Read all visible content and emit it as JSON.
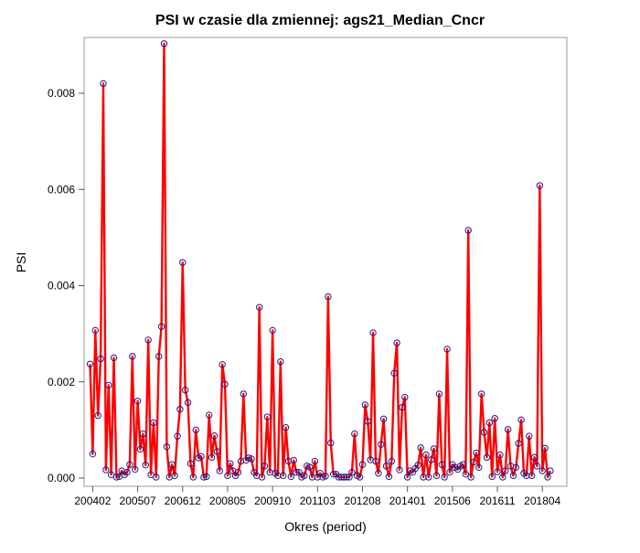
{
  "chart_data": {
    "type": "line",
    "title": "PSI w czasie dla zmiennej: ags21_Median_Cncr",
    "xlabel": "Okres (period)",
    "ylabel": "PSI",
    "y_ticks": [
      "0.000",
      "0.002",
      "0.004",
      "0.006",
      "0.008"
    ],
    "ylim": [
      0,
      0.0095
    ],
    "x_ticks": [
      "200402",
      "200507",
      "200612",
      "200805",
      "200910",
      "201103",
      "201208",
      "201401",
      "201506",
      "201611",
      "201804"
    ],
    "x": [
      "200401",
      "200402",
      "200403",
      "200404",
      "200405",
      "200406",
      "200407",
      "200408",
      "200409",
      "200410",
      "200411",
      "200412",
      "200501",
      "200502",
      "200503",
      "200504",
      "200505",
      "200506",
      "200507",
      "200508",
      "200509",
      "200510",
      "200511",
      "200512",
      "200601",
      "200602",
      "200603",
      "200604",
      "200605",
      "200606",
      "200607",
      "200608",
      "200609",
      "200610",
      "200611",
      "200612",
      "200701",
      "200702",
      "200703",
      "200704",
      "200705",
      "200706",
      "200707",
      "200708",
      "200709",
      "200710",
      "200711",
      "200712",
      "200801",
      "200802",
      "200803",
      "200804",
      "200805",
      "200806",
      "200807",
      "200808",
      "200809",
      "200810",
      "200811",
      "200812",
      "200901",
      "200902",
      "200903",
      "200904",
      "200905",
      "200906",
      "200907",
      "200908",
      "200909",
      "200910",
      "200911",
      "200912",
      "201001",
      "201002",
      "201003",
      "201004",
      "201005",
      "201006",
      "201007",
      "201008",
      "201009",
      "201010",
      "201011",
      "201012",
      "201101",
      "201102",
      "201103",
      "201104",
      "201105",
      "201106",
      "201107",
      "201108",
      "201109",
      "201110",
      "201111",
      "201112",
      "201201",
      "201202",
      "201203",
      "201204",
      "201205",
      "201206",
      "201207",
      "201208",
      "201209",
      "201210",
      "201211",
      "201212",
      "201301",
      "201302",
      "201303",
      "201304",
      "201305",
      "201306",
      "201307",
      "201308",
      "201309",
      "201310",
      "201311",
      "201312",
      "201401",
      "201402",
      "201403",
      "201404",
      "201405",
      "201406",
      "201407",
      "201408",
      "201409",
      "201410",
      "201411",
      "201412",
      "201501",
      "201502",
      "201503",
      "201504",
      "201505",
      "201506",
      "201507",
      "201508",
      "201509",
      "201510",
      "201511",
      "201512",
      "201601",
      "201602",
      "201603",
      "201604",
      "201605",
      "201606",
      "201607",
      "201608",
      "201609",
      "201610",
      "201611",
      "201612",
      "201701",
      "201702",
      "201703",
      "201704",
      "201705",
      "201706",
      "201707",
      "201708",
      "201709",
      "201710",
      "201711",
      "201712",
      "201801",
      "201802",
      "201803",
      "201804",
      "201805",
      "201806",
      "201807"
    ],
    "series": [
      {
        "color": "#ff0000",
        "marker_color": "#1c1c8c",
        "values": [
          0.00237,
          0.0005,
          0.00307,
          0.0013,
          0.00248,
          0.0082,
          0.00017,
          0.00193,
          7e-05,
          0.0025,
          2e-05,
          3e-05,
          0.00015,
          7e-05,
          0.00012,
          0.00028,
          0.00253,
          0.00018,
          0.0016,
          0.0006,
          0.00092,
          0.00027,
          0.00287,
          7e-05,
          0.00115,
          2e-05,
          0.00253,
          0.00315,
          0.00903,
          0.00065,
          2e-05,
          0.00028,
          5e-05,
          0.00087,
          0.00143,
          0.00448,
          0.00183,
          0.00157,
          0.0003,
          2e-05,
          0.001,
          0.00042,
          0.00045,
          2e-05,
          3e-05,
          0.00131,
          0.00043,
          0.00088,
          0.00055,
          0.00015,
          0.00236,
          0.00195,
          5e-05,
          0.0003,
          0.00015,
          5e-05,
          0.00012,
          0.00035,
          0.00175,
          0.00037,
          0.00042,
          0.0004,
          0.00012,
          5e-05,
          0.00355,
          2e-05,
          0.00025,
          0.00127,
          0.00012,
          0.00307,
          0.0001,
          5e-05,
          0.00242,
          5e-05,
          0.00105,
          0.00035,
          3e-05,
          0.00037,
          0.00012,
          0.00012,
          2e-05,
          5e-05,
          0.00025,
          0.00023,
          2e-05,
          0.00035,
          2e-05,
          0.0001,
          2e-05,
          4e-05,
          0.00377,
          0.00073,
          8e-05,
          8e-05,
          2e-05,
          2e-05,
          2e-05,
          2e-05,
          2e-05,
          0.00012,
          0.00092,
          5e-05,
          2e-05,
          0.00028,
          0.00152,
          0.00118,
          0.00038,
          0.00302,
          0.00035,
          0.0001,
          0.0007,
          0.00123,
          0.00025,
          3e-05,
          0.00035,
          0.00218,
          0.00281,
          0.00017,
          0.00147,
          0.00168,
          2e-05,
          0.00015,
          0.00012,
          0.0002,
          0.00027,
          0.00063,
          2e-05,
          0.00048,
          2e-05,
          0.00038,
          0.00061,
          5e-05,
          0.00175,
          0.00028,
          2e-05,
          0.00268,
          0.00012,
          0.00028,
          0.00022,
          0.00018,
          0.00025,
          0.00028,
          8e-05,
          0.00515,
          2e-05,
          0.00033,
          0.00052,
          0.00022,
          0.00175,
          0.00095,
          0.00043,
          0.00115,
          3e-05,
          0.00124,
          0.00013,
          0.00048,
          2e-05,
          0.00015,
          0.00101,
          0.00025,
          5e-05,
          0.00022,
          0.00072,
          0.00121,
          0.0001,
          5e-05,
          0.00087,
          5e-05,
          0.00043,
          0.00025,
          0.00608,
          0.00015,
          0.00062,
          2e-05,
          0.00015
        ]
      }
    ],
    "grid": false,
    "legend": "none"
  }
}
